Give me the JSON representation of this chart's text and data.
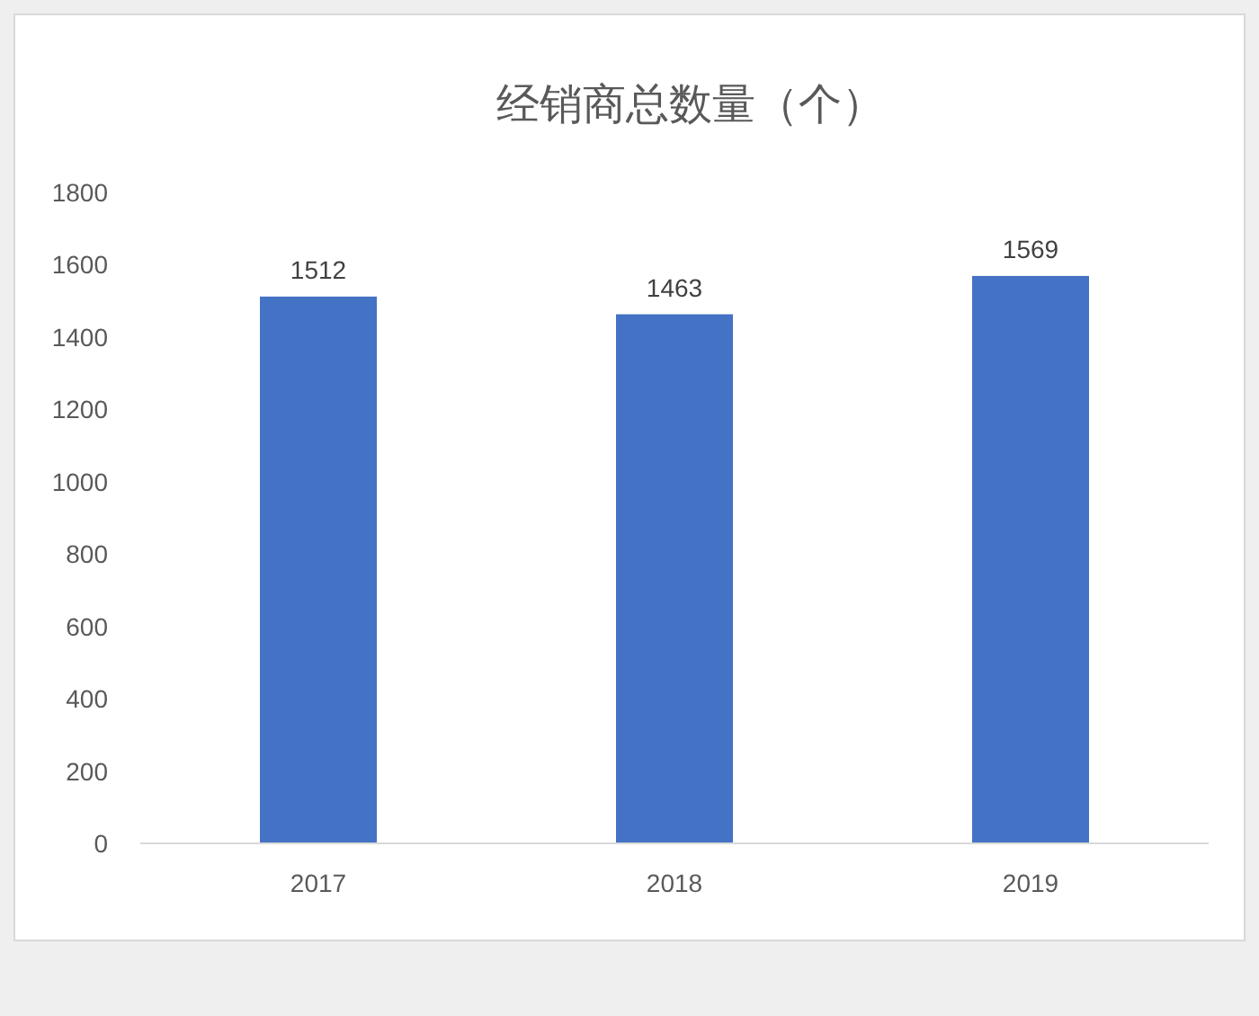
{
  "chart_data": {
    "type": "bar",
    "title": "经销商总数量（个）",
    "categories": [
      "2017",
      "2018",
      "2019"
    ],
    "values": [
      1512,
      1463,
      1569
    ],
    "color": "#4472c4",
    "ylim": [
      0,
      1800
    ],
    "yticks": [
      0,
      200,
      400,
      600,
      800,
      1000,
      1200,
      1400,
      1600,
      1800
    ],
    "data_labels": true,
    "grid": false
  }
}
